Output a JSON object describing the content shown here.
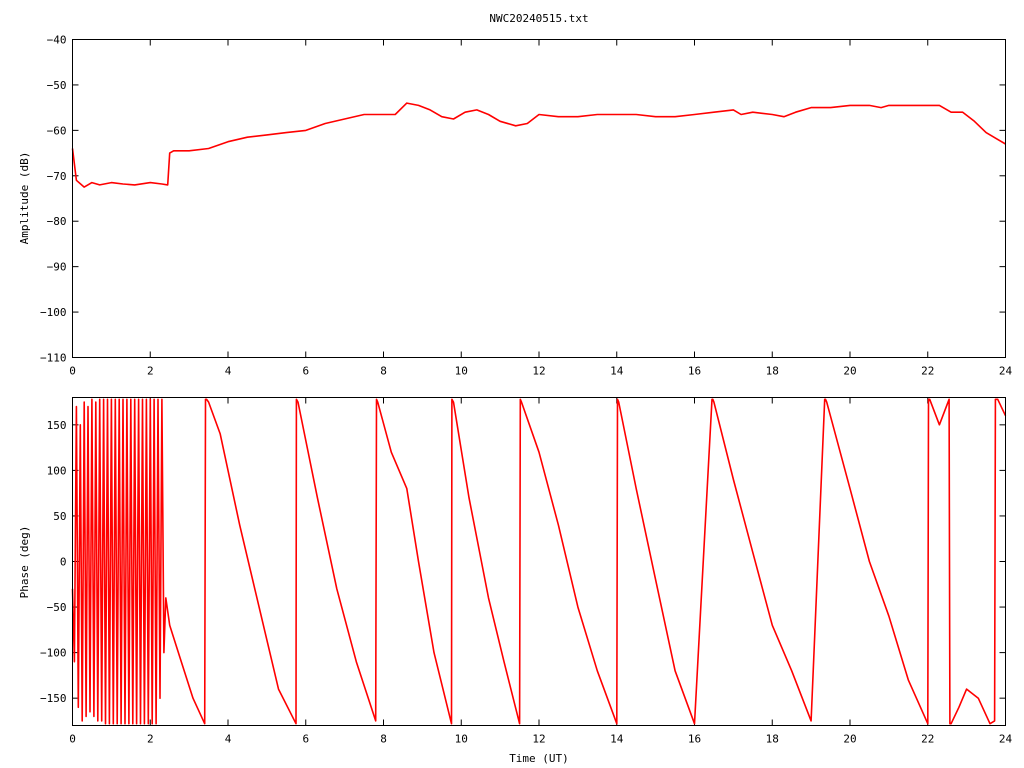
{
  "chart_title": "NWC20240515.txt",
  "colors": {
    "trace": "#ff0000",
    "axis": "#000000",
    "background": "#ffffff"
  },
  "chart_data": [
    {
      "type": "line",
      "ylabel": "Amplitude (dB)",
      "xlabel": "",
      "xlim": [
        0,
        24
      ],
      "ylim": [
        -110,
        -40
      ],
      "xticks": [
        0,
        2,
        4,
        6,
        8,
        10,
        12,
        14,
        16,
        18,
        20,
        22,
        24
      ],
      "yticks": [
        -40,
        -50,
        -60,
        -70,
        -80,
        -90,
        -100,
        -110
      ],
      "grid": false,
      "legend": "none",
      "series": [
        {
          "x": [
            0,
            0.1,
            0.3,
            0.5,
            0.7,
            1.0,
            1.3,
            1.6,
            2.0,
            2.3,
            2.45,
            2.5,
            2.6,
            3.0,
            3.5,
            4.0,
            4.5,
            5.0,
            5.5,
            6.0,
            6.5,
            7.0,
            7.5,
            8.0,
            8.3,
            8.6,
            8.9,
            9.2,
            9.5,
            9.8,
            10.1,
            10.4,
            10.7,
            11.0,
            11.4,
            11.7,
            12.0,
            12.5,
            13.0,
            13.5,
            14.0,
            14.5,
            15.0,
            15.5,
            16.0,
            16.5,
            17.0,
            17.2,
            17.5,
            18.0,
            18.3,
            18.6,
            19.0,
            19.5,
            20.0,
            20.5,
            20.8,
            21.0,
            21.5,
            22.0,
            22.3,
            22.6,
            22.9,
            23.2,
            23.5,
            23.8,
            24.0
          ],
          "y": [
            -64,
            -71,
            -72.5,
            -71.5,
            -72,
            -71.5,
            -71.8,
            -72,
            -71.5,
            -71.8,
            -72,
            -65,
            -64.5,
            -64.5,
            -64,
            -62.5,
            -61.5,
            -61,
            -60.5,
            -60,
            -58.5,
            -57.5,
            -56.5,
            -56.5,
            -56.5,
            -54,
            -54.5,
            -55.5,
            -57,
            -57.5,
            -56,
            -55.5,
            -56.5,
            -58,
            -59,
            -58.5,
            -56.5,
            -57,
            -57,
            -56.5,
            -56.5,
            -56.5,
            -57,
            -57,
            -56.5,
            -56,
            -55.5,
            -56.5,
            -56,
            -56.5,
            -57,
            -56,
            -55,
            -55,
            -54.5,
            -54.5,
            -55,
            -54.5,
            -54.5,
            -54.5,
            -54.5,
            -56,
            -56,
            -58,
            -60.5,
            -62,
            -63
          ]
        }
      ]
    },
    {
      "type": "line",
      "ylabel": "Phase (deg)",
      "xlabel": "Time (UT)",
      "xlim": [
        0,
        24
      ],
      "ylim": [
        -180,
        180
      ],
      "xticks": [
        0,
        2,
        4,
        6,
        8,
        10,
        12,
        14,
        16,
        18,
        20,
        22,
        24
      ],
      "yticks": [
        150,
        100,
        50,
        0,
        -50,
        -100,
        -150
      ],
      "grid": false,
      "legend": "none",
      "series": [
        {
          "x": [
            0,
            0.05,
            0.1,
            0.15,
            0.2,
            0.25,
            0.3,
            0.35,
            0.4,
            0.45,
            0.5,
            0.55,
            0.6,
            0.65,
            0.7,
            0.75,
            0.8,
            0.85,
            0.9,
            0.95,
            1.0,
            1.05,
            1.1,
            1.15,
            1.2,
            1.25,
            1.3,
            1.35,
            1.4,
            1.45,
            1.5,
            1.55,
            1.6,
            1.65,
            1.7,
            1.75,
            1.8,
            1.85,
            1.9,
            1.95,
            2.0,
            2.05,
            2.1,
            2.15,
            2.2,
            2.25,
            2.3,
            2.35,
            2.4,
            2.5,
            2.8,
            3.1,
            3.4,
            3.42,
            3.45,
            3.5,
            3.8,
            4.3,
            4.8,
            5.3,
            5.75,
            5.76,
            5.8,
            6.3,
            6.8,
            7.3,
            7.8,
            7.82,
            7.85,
            8.2,
            8.6,
            8.9,
            9.3,
            9.75,
            9.76,
            9.8,
            10.2,
            10.7,
            11.1,
            11.5,
            11.52,
            11.55,
            12.0,
            12.5,
            13.0,
            13.5,
            14.0,
            14.02,
            14.05,
            14.5,
            15.0,
            15.5,
            16.0,
            16.45,
            16.47,
            16.5,
            17.0,
            17.5,
            18.0,
            18.5,
            19.0,
            19.35,
            19.37,
            19.4,
            20.0,
            20.5,
            21.0,
            21.5,
            22.0,
            22.02,
            22.05,
            22.3,
            22.55,
            22.57,
            22.6,
            22.8,
            23.0,
            23.3,
            23.6,
            23.72,
            23.74,
            23.8,
            24.0
          ],
          "y": [
            -30,
            -110,
            170,
            -160,
            150,
            -175,
            175,
            -170,
            170,
            -165,
            178,
            -170,
            175,
            -175,
            178,
            -175,
            178,
            -178,
            178,
            -178,
            178,
            -178,
            178,
            -178,
            178,
            -178,
            178,
            -178,
            178,
            -178,
            178,
            -178,
            178,
            -178,
            178,
            -178,
            178,
            -178,
            178,
            -178,
            178,
            -178,
            178,
            -178,
            178,
            -150,
            178,
            -100,
            -40,
            -70,
            -110,
            -150,
            -178,
            178,
            178,
            175,
            140,
            40,
            -50,
            -140,
            -178,
            178,
            175,
            70,
            -30,
            -110,
            -175,
            178,
            175,
            120,
            80,
            0,
            -100,
            -178,
            178,
            175,
            70,
            -40,
            -110,
            -178,
            178,
            175,
            120,
            40,
            -50,
            -120,
            -178,
            178,
            175,
            80,
            -20,
            -120,
            -178,
            178,
            178,
            175,
            90,
            10,
            -70,
            -120,
            -175,
            178,
            178,
            175,
            80,
            0,
            -60,
            -130,
            -178,
            178,
            178,
            150,
            178,
            -178,
            -178,
            -160,
            -140,
            -150,
            -178,
            -175,
            178,
            178,
            160
          ]
        }
      ]
    }
  ]
}
